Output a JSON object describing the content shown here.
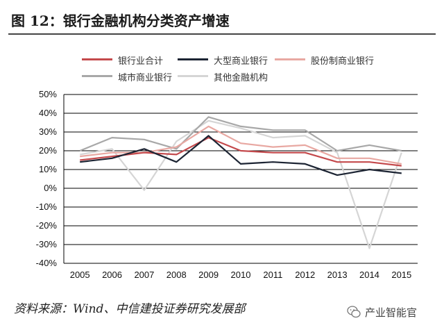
{
  "figure": {
    "title": "图 12：银行金融机构分类资产增速",
    "source": "资料来源：Wind、中信建投证券研究发展部",
    "watermark": "产业智能官",
    "watermark_icon": "wechat-icon"
  },
  "colors": {
    "banking_total": "#c4494c",
    "large_commercial": "#1c2433",
    "joint_stock": "#e8a8a2",
    "city_commercial": "#a8a8a8",
    "other_financial": "#d5d5d5",
    "grid": "#000000"
  },
  "chart_data": {
    "type": "line",
    "title": "",
    "xlabel": "",
    "ylabel": "",
    "categories": [
      "2005",
      "2006",
      "2007",
      "2008",
      "2009",
      "2010",
      "2011",
      "2012",
      "2013",
      "2014",
      "2015"
    ],
    "ylim": [
      -40,
      50
    ],
    "yticks": [
      50,
      40,
      30,
      20,
      10,
      0,
      -10,
      -20,
      -30,
      -40
    ],
    "ytick_labels": [
      "50%",
      "40%",
      "30%",
      "20%",
      "10%",
      "0%",
      "-10%",
      "-20%",
      "-30%",
      "-40%"
    ],
    "grid": true,
    "legend_position": "top",
    "series": [
      {
        "name": "银行业合计",
        "color_key": "banking_total",
        "values": [
          15,
          17,
          19,
          18,
          27,
          20,
          19,
          19,
          14,
          14,
          12
        ]
      },
      {
        "name": "大型商业银行",
        "color_key": "large_commercial",
        "values": [
          14,
          16,
          21,
          14,
          28,
          13,
          14,
          13,
          7,
          10,
          8
        ]
      },
      {
        "name": "股份制商业银行",
        "color_key": "joint_stock",
        "values": [
          17,
          19,
          19,
          22,
          33,
          24,
          22,
          23,
          16,
          16,
          13
        ]
      },
      {
        "name": "城市商业银行",
        "color_key": "city_commercial",
        "values": [
          20,
          27,
          26,
          21,
          38,
          33,
          31,
          31,
          20,
          23,
          20
        ]
      },
      {
        "name": "其他金融机构",
        "color_key": "other_financial",
        "values": [
          18,
          21,
          -1,
          25,
          36,
          32,
          27,
          28,
          19,
          -32,
          19
        ]
      }
    ]
  }
}
